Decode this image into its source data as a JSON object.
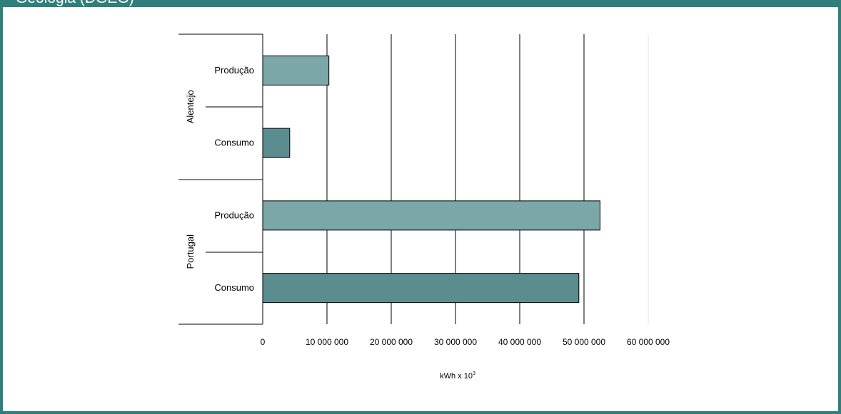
{
  "window": {
    "title": "Geologia (DGEG)"
  },
  "colors": {
    "frame": "#2f7f7c",
    "producao_bar": "#7ba7a8",
    "consumo_bar": "#5b8c90"
  },
  "chart_data": {
    "type": "bar",
    "orientation": "horizontal",
    "groups": [
      {
        "name": "Alentejo",
        "categories": [
          "Produção",
          "Consumo"
        ],
        "values": [
          10300000,
          4200000
        ]
      },
      {
        "name": "Portugal",
        "categories": [
          "Produção",
          "Consumo"
        ],
        "values": [
          52500000,
          49200000
        ]
      }
    ],
    "xlabel": "kWh x 10",
    "xlabel_superscript": "3",
    "xlim": [
      0,
      60000000
    ],
    "xticks": [
      0,
      10000000,
      20000000,
      30000000,
      40000000,
      50000000,
      60000000
    ],
    "xtick_labels": [
      "0",
      "10 000 000",
      "20 000 000",
      "30 000 000",
      "40 000 000",
      "50 000 000",
      "60 000 000"
    ],
    "grid": "vertical",
    "legend": "none"
  }
}
